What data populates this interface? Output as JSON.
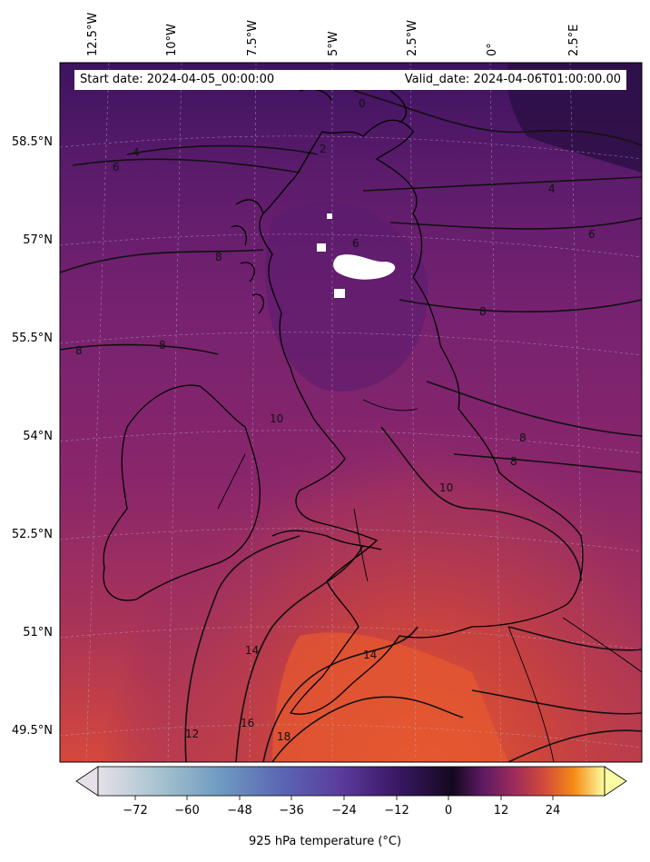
{
  "header": {
    "start_date": "Start date: 2024-04-05_00:00:00",
    "valid_date": "Valid_date: 2024-04-06T01:00:00.00"
  },
  "map": {
    "lon_labels": [
      "12.5°W",
      "10°W",
      "7.5°W",
      "5°W",
      "2.5°W",
      "0°",
      "2.5°E"
    ],
    "lat_labels": [
      "58.5°N",
      "57°N",
      "55.5°N",
      "54°N",
      "52.5°N",
      "51°N",
      "49.5°N"
    ],
    "contour_labels": [
      "0",
      "2",
      "4",
      "4",
      "6",
      "6",
      "6",
      "8",
      "8",
      "8",
      "8",
      "8",
      "8",
      "10",
      "10",
      "12",
      "14",
      "14",
      "16",
      "18"
    ]
  },
  "colorbar": {
    "title": "925 hPa temperature (°C)",
    "ticks": [
      "−72",
      "−60",
      "−48",
      "−36",
      "−24",
      "−12",
      "0",
      "12",
      "24"
    ],
    "colors": [
      "#e3dde5",
      "#8fb7c9",
      "#5e78b8",
      "#5b3ea0",
      "#2a0f4f",
      "#6b1f63",
      "#b3364f",
      "#ee6a2a",
      "#fcae12",
      "#fcffa4"
    ]
  }
}
